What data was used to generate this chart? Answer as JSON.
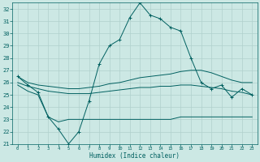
{
  "xlabel": "Humidex (Indice chaleur)",
  "xlim": [
    -0.5,
    23.5
  ],
  "ylim": [
    21,
    32.5
  ],
  "xticks": [
    0,
    1,
    2,
    3,
    4,
    5,
    6,
    7,
    8,
    9,
    10,
    11,
    12,
    13,
    14,
    15,
    16,
    17,
    18,
    19,
    20,
    21,
    22,
    23
  ],
  "yticks": [
    21,
    22,
    23,
    24,
    25,
    26,
    27,
    28,
    29,
    30,
    31,
    32
  ],
  "bg_color": "#cce8e4",
  "grid_color": "#b0d0cc",
  "line_color": "#006060",
  "line1_x": [
    0,
    1,
    2,
    3,
    4,
    5,
    6,
    7,
    8,
    9,
    10,
    11,
    12,
    13,
    14,
    15,
    16,
    17,
    18,
    19,
    20,
    21,
    22,
    23
  ],
  "line1_y": [
    26.5,
    25.8,
    25.2,
    23.2,
    22.2,
    21.0,
    22.0,
    24.5,
    27.5,
    29.0,
    29.5,
    31.3,
    32.5,
    31.5,
    31.2,
    30.5,
    30.2,
    28.0,
    26.0,
    25.5,
    25.8,
    24.8,
    25.5,
    25.0
  ],
  "line2_x": [
    0,
    1,
    2,
    3,
    4,
    5,
    6,
    7,
    8,
    9,
    10,
    11,
    12,
    13,
    14,
    15,
    16,
    17,
    18,
    19,
    20,
    21,
    22,
    23
  ],
  "line2_y": [
    26.5,
    26.0,
    25.8,
    25.7,
    25.6,
    25.5,
    25.5,
    25.6,
    25.7,
    25.9,
    26.0,
    26.2,
    26.4,
    26.5,
    26.6,
    26.7,
    26.9,
    27.0,
    27.0,
    26.8,
    26.5,
    26.2,
    26.0,
    26.0
  ],
  "line3_x": [
    0,
    1,
    2,
    3,
    4,
    5,
    6,
    7,
    8,
    9,
    10,
    11,
    12,
    13,
    14,
    15,
    16,
    17,
    18,
    19,
    20,
    21,
    22,
    23
  ],
  "line3_y": [
    26.0,
    25.7,
    25.5,
    25.3,
    25.2,
    25.1,
    25.1,
    25.1,
    25.2,
    25.3,
    25.4,
    25.5,
    25.6,
    25.6,
    25.7,
    25.7,
    25.8,
    25.8,
    25.7,
    25.6,
    25.5,
    25.3,
    25.2,
    25.0
  ],
  "line4_x": [
    0,
    1,
    2,
    3,
    4,
    5,
    6,
    7,
    8,
    9,
    10,
    11,
    12,
    13,
    14,
    15,
    16,
    17,
    18,
    19,
    20,
    21,
    22,
    23
  ],
  "line4_y": [
    25.8,
    25.3,
    25.0,
    23.2,
    22.8,
    23.0,
    23.0,
    23.0,
    23.0,
    23.0,
    23.0,
    23.0,
    23.0,
    23.0,
    23.0,
    23.0,
    23.2,
    23.2,
    23.2,
    23.2,
    23.2,
    23.2,
    23.2,
    23.2
  ]
}
